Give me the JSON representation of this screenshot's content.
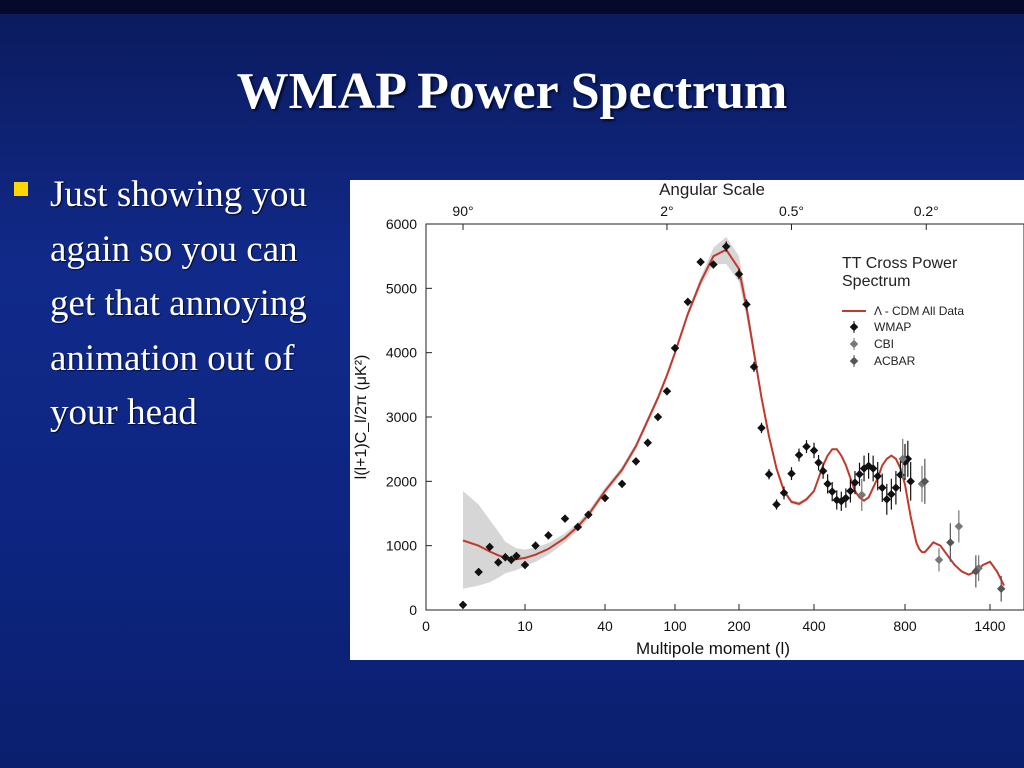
{
  "slide": {
    "title": "WMAP Power Spectrum",
    "bullet": "Just showing you again so you can get that annoying animation out of your head",
    "colors": {
      "background": "#1030a0",
      "bullet": "#ffd700",
      "text": "#ffffff"
    }
  },
  "chart_data": {
    "type": "scatter",
    "top_axis_title": "Angular Scale",
    "top_ticks": [
      "90°",
      "2°",
      "0.5°",
      "0.2°"
    ],
    "top_ticks_l": [
      2,
      90,
      340,
      950
    ],
    "xlabel": "Multipole moment (l)",
    "ylabel": "l(l+1)C_l/2π (μK²)",
    "x_scale": "mixed: logarithmic for l up to about 100, linear above",
    "x_ticks": [
      0,
      10,
      40,
      100,
      200,
      400,
      800,
      1400
    ],
    "xlim": [
      0,
      1500
    ],
    "y_ticks": [
      0,
      1000,
      2000,
      3000,
      4000,
      5000,
      6000
    ],
    "ylim": [
      0,
      6000
    ],
    "legend_title": "TT Cross Power Spectrum",
    "legend": [
      "Λ - CDM All Data",
      "WMAP",
      "CBI",
      "ACBAR"
    ],
    "legend_position": "top-right",
    "model": {
      "name": "Λ - CDM All Data",
      "color": "#c0392b",
      "x": [
        2,
        3,
        4,
        5,
        6,
        8,
        10,
        12,
        15,
        20,
        25,
        30,
        40,
        50,
        60,
        70,
        80,
        90,
        100,
        120,
        140,
        160,
        180,
        200,
        220,
        240,
        260,
        280,
        300,
        320,
        340,
        360,
        380,
        400,
        420,
        440,
        460,
        480,
        500,
        520,
        540,
        560,
        580,
        600,
        620,
        640,
        660,
        680,
        700,
        720,
        740,
        760,
        780,
        800,
        820,
        840,
        860,
        880,
        900,
        920,
        940,
        960,
        980,
        1000,
        1050,
        1100,
        1150,
        1200,
        1250,
        1300,
        1350,
        1400,
        1450,
        1500
      ],
      "y": [
        1080,
        1000,
        910,
        850,
        810,
        790,
        810,
        860,
        950,
        1120,
        1300,
        1480,
        1850,
        2180,
        2550,
        2950,
        3300,
        3650,
        4000,
        4600,
        5100,
        5500,
        5600,
        5300,
        4700,
        4000,
        3300,
        2700,
        2200,
        1850,
        1680,
        1650,
        1720,
        1850,
        2050,
        2250,
        2400,
        2500,
        2500,
        2400,
        2250,
        2050,
        1850,
        1750,
        1700,
        1750,
        1900,
        2050,
        2250,
        2350,
        2400,
        2350,
        2200,
        1950,
        1700,
        1450,
        1250,
        1050,
        950,
        900,
        900,
        950,
        1000,
        1050,
        1000,
        850,
        700,
        600,
        550,
        600,
        700,
        750,
        600,
        380
      ]
    },
    "uncertainty_band": {
      "x": [
        2,
        3,
        4,
        5,
        6,
        8,
        10,
        12,
        15,
        20,
        25,
        30,
        40,
        50,
        60,
        70,
        80,
        90,
        100,
        120,
        140,
        160,
        180,
        200,
        220,
        240,
        260,
        280,
        300,
        320,
        340,
        360,
        380,
        400
      ],
      "lower": [
        330,
        380,
        430,
        500,
        570,
        620,
        680,
        750,
        860,
        1050,
        1240,
        1420,
        1800,
        2130,
        2500,
        2900,
        3250,
        3600,
        3950,
        4550,
        5030,
        5370,
        5380,
        5100,
        4550,
        3900,
        3230,
        2650,
        2160,
        1820,
        1650,
        1620,
        1690,
        1820
      ],
      "upper": [
        1850,
        1640,
        1400,
        1220,
        1060,
        960,
        940,
        970,
        1040,
        1190,
        1360,
        1540,
        1900,
        2230,
        2600,
        3000,
        3350,
        3700,
        4050,
        4650,
        5170,
        5630,
        5800,
        5500,
        4850,
        4100,
        3370,
        2750,
        2240,
        1880,
        1710,
        1680,
        1750,
        1880
      ]
    },
    "series": [
      {
        "name": "WMAP",
        "color": "#111111",
        "x": [
          2,
          3,
          4,
          5,
          6,
          7,
          8,
          10,
          12,
          15,
          20,
          25,
          30,
          40,
          50,
          60,
          70,
          80,
          90,
          100,
          120,
          140,
          160,
          180,
          200,
          220,
          240,
          260,
          280,
          300,
          320,
          340,
          360,
          380,
          400,
          420,
          440,
          460,
          480,
          500,
          520,
          540,
          560,
          580,
          600,
          620,
          640,
          660,
          680,
          700,
          720,
          740,
          760,
          780,
          800,
          820,
          840
        ],
        "y": [
          80,
          590,
          980,
          740,
          820,
          780,
          840,
          700,
          1000,
          1160,
          1420,
          1290,
          1480,
          1740,
          1960,
          2310,
          2600,
          3000,
          3400,
          4070,
          4790,
          5410,
          5370,
          5650,
          5220,
          4750,
          3780,
          2830,
          2110,
          1640,
          1820,
          2120,
          2410,
          2540,
          2480,
          2290,
          2160,
          1960,
          1840,
          1710,
          1690,
          1740,
          1850,
          1980,
          2110,
          2200,
          2240,
          2200,
          2080,
          1900,
          1720,
          1800,
          1900,
          2100,
          2300,
          2350,
          2000
        ],
        "error": [
          60,
          60,
          60,
          60,
          60,
          60,
          60,
          60,
          60,
          60,
          60,
          60,
          60,
          60,
          60,
          60,
          60,
          60,
          60,
          60,
          60,
          60,
          60,
          80,
          80,
          80,
          80,
          80,
          80,
          80,
          100,
          100,
          100,
          100,
          120,
          120,
          120,
          150,
          150,
          150,
          150,
          150,
          180,
          180,
          180,
          200,
          200,
          200,
          220,
          220,
          240,
          240,
          260,
          260,
          280,
          280,
          300
        ]
      },
      {
        "name": "CBI",
        "color": "#777777",
        "x": [
          610,
          790,
          920,
          1040,
          1180,
          1320
        ],
        "y": [
          1790,
          2350,
          1960,
          780,
          1300,
          650
        ],
        "error": [
          250,
          310,
          280,
          180,
          250,
          200
        ]
      },
      {
        "name": "ACBAR",
        "color": "#555555",
        "x": [
          940,
          1120,
          1300,
          1480
        ],
        "y": [
          2000,
          1050,
          600,
          330
        ],
        "error": [
          350,
          300,
          250,
          200
        ]
      }
    ]
  }
}
